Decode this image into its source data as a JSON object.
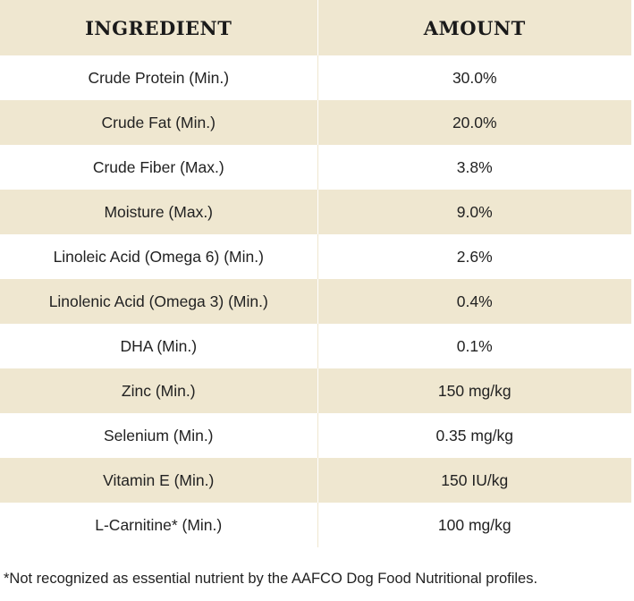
{
  "table": {
    "headers": {
      "ingredient": "INGREDIENT",
      "amount": "AMOUNT"
    },
    "rows": [
      {
        "ingredient": "Crude Protein (Min.)",
        "amount": "30.0%"
      },
      {
        "ingredient": "Crude Fat (Min.)",
        "amount": "20.0%"
      },
      {
        "ingredient": "Crude Fiber (Max.)",
        "amount": "3.8%"
      },
      {
        "ingredient": "Moisture (Max.)",
        "amount": "9.0%"
      },
      {
        "ingredient": "Linoleic Acid (Omega 6) (Min.)",
        "amount": "2.6%"
      },
      {
        "ingredient": "Linolenic Acid (Omega 3) (Min.)",
        "amount": "0.4%"
      },
      {
        "ingredient": "DHA (Min.)",
        "amount": "0.1%"
      },
      {
        "ingredient": "Zinc (Min.)",
        "amount": "150 mg/kg"
      },
      {
        "ingredient": "Selenium (Min.)",
        "amount": "0.35 mg/kg"
      },
      {
        "ingredient": "Vitamin E (Min.)",
        "amount": "150 IU/kg"
      },
      {
        "ingredient": "L-Carnitine* (Min.)",
        "amount": "100 mg/kg"
      }
    ]
  },
  "footnote": "*Not recognized as essential nutrient by the AAFCO Dog Food Nutritional profiles.",
  "colors": {
    "band": "#efe7d0",
    "text": "#222222"
  }
}
